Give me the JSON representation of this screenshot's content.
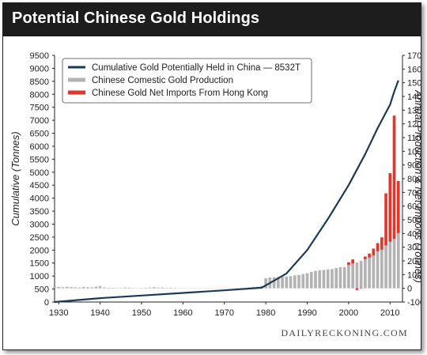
{
  "title": "Potential Chinese Gold Holdings",
  "watermark": "DAILYRECKONING.COM",
  "colors": {
    "title_bar": "#1d1d1d",
    "cumulative_line": "#1b3a57",
    "domestic_bars": "#b3b3b3",
    "import_bars": "#e2352b",
    "axes": "#222222"
  },
  "chart_data": {
    "type": "bar+line",
    "xlim": [
      1929,
      2013
    ],
    "x_ticks": [
      "1930",
      "1940",
      "1950",
      "1960",
      "1970",
      "1980",
      "1990",
      "2000",
      "2010"
    ],
    "y_left": {
      "label": "Cumulative (Tonnes)",
      "lim": [
        0,
        9500
      ],
      "ticks": [
        "0",
        "500",
        "1000",
        "1500",
        "2000",
        "2500",
        "3000",
        "3500",
        "4000",
        "4500",
        "5000",
        "5500",
        "6000",
        "6500",
        "7000",
        "7500",
        "8000",
        "8500",
        "9000",
        "9500"
      ]
    },
    "y_right": {
      "label": "Annual Production & Net Imports (Tonnes)",
      "lim": [
        -100,
        1700
      ],
      "ticks": [
        "-100",
        "0",
        "100",
        "200",
        "300",
        "400",
        "500",
        "600",
        "700",
        "800",
        "900",
        "1000",
        "1100",
        "1200",
        "1300",
        "1400",
        "1500",
        "1600",
        "1700"
      ]
    },
    "legend_position": "top-left",
    "series": [
      {
        "name": "Cumulative Gold Potentially Held in China — 8532T",
        "type": "line",
        "axis": "left",
        "x": [
          1929,
          1940,
          1950,
          1960,
          1970,
          1979,
          1985,
          1990,
          1995,
          2000,
          2004,
          2007,
          2010,
          2011,
          2012
        ],
        "y": [
          0,
          150,
          250,
          350,
          450,
          550,
          1100,
          2000,
          3200,
          4500,
          5700,
          6700,
          7600,
          8100,
          8532
        ]
      },
      {
        "name": "Chinese Comestic Gold Production",
        "type": "bar",
        "axis": "right",
        "x": [
          1929,
          1930,
          1931,
          1932,
          1933,
          1934,
          1935,
          1936,
          1937,
          1938,
          1939,
          1940,
          1941,
          1942,
          1943,
          1944,
          1945,
          1946,
          1947,
          1948,
          1949,
          1950,
          1951,
          1952,
          1953,
          1954,
          1955,
          1956,
          1957,
          1958,
          1959,
          1960,
          1961,
          1962,
          1963,
          1964,
          1965,
          1966,
          1967,
          1968,
          1969,
          1970,
          1971,
          1972,
          1973,
          1974,
          1975,
          1976,
          1977,
          1978,
          1979,
          1980,
          1981,
          1982,
          1983,
          1984,
          1985,
          1986,
          1987,
          1988,
          1989,
          1990,
          1991,
          1992,
          1993,
          1994,
          1995,
          1996,
          1997,
          1998,
          1999,
          2000,
          2001,
          2002,
          2003,
          2004,
          2005,
          2006,
          2007,
          2008,
          2009,
          2010,
          2011,
          2012
        ],
        "y": [
          12,
          10,
          8,
          11,
          9,
          7,
          6,
          10,
          8,
          7,
          12,
          16,
          6,
          4,
          4,
          3,
          3,
          6,
          5,
          3,
          2,
          3,
          4,
          6,
          8,
          5,
          6,
          3,
          4,
          3,
          2,
          2,
          2,
          2,
          2,
          2,
          2,
          2,
          2,
          2,
          2,
          2,
          2,
          2,
          2,
          2,
          2,
          6,
          9,
          12,
          18,
          74,
          80,
          81,
          82,
          84,
          86,
          89,
          95,
          98,
          104,
          110,
          120,
          127,
          131,
          134,
          138,
          141,
          148,
          154,
          155,
          170,
          181,
          189,
          200,
          212,
          224,
          240,
          270,
          282,
          313,
          340,
          360,
          403
        ]
      },
      {
        "name": "Chinese Gold Net Imports From Hong Kong",
        "type": "bar",
        "axis": "right",
        "x": [
          2000,
          2001,
          2002,
          2003,
          2004,
          2005,
          2006,
          2007,
          2008,
          2009,
          2010,
          2011,
          2012
        ],
        "y": [
          20,
          30,
          -12,
          -3,
          20,
          30,
          50,
          60,
          90,
          380,
          500,
          900,
          380
        ]
      }
    ]
  }
}
